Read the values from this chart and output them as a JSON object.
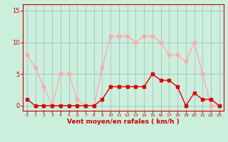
{
  "hours": [
    0,
    1,
    2,
    3,
    4,
    5,
    6,
    7,
    8,
    9,
    10,
    11,
    12,
    13,
    14,
    15,
    16,
    17,
    18,
    19,
    20,
    21,
    22,
    23
  ],
  "wind_avg": [
    1,
    0,
    0,
    0,
    0,
    0,
    0,
    0,
    0,
    1,
    3,
    3,
    3,
    3,
    3,
    5,
    4,
    4,
    3,
    0,
    2,
    1,
    1,
    0
  ],
  "wind_gust": [
    8,
    6,
    3,
    0,
    5,
    5,
    1,
    0,
    0,
    6,
    11,
    11,
    11,
    10,
    11,
    11,
    10,
    8,
    8,
    7,
    10,
    5,
    0,
    0
  ],
  "color_avg": "#dd0000",
  "color_gust": "#ffaaaa",
  "background_color": "#cceedd",
  "grid_color": "#99bbbb",
  "xlabel": "Vent moyen/en rafales ( km/h )",
  "xlabel_color": "#cc0000",
  "yticks": [
    0,
    5,
    10,
    15
  ],
  "ylim": [
    -0.8,
    16
  ],
  "xlim": [
    -0.5,
    23.5
  ],
  "tick_color": "#cc0000",
  "spine_color": "#cc0000",
  "markersize": 2.5,
  "linewidth": 1.0
}
